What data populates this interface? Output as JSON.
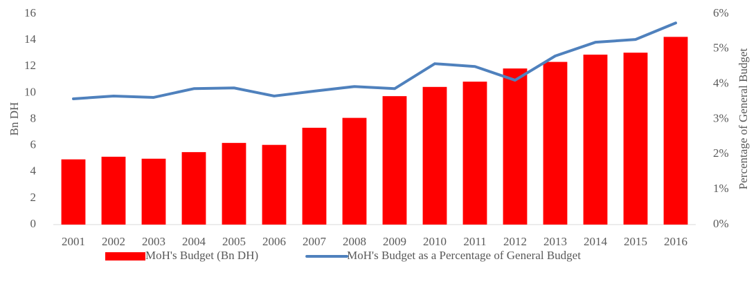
{
  "chart_data": {
    "type": "combo",
    "categories": [
      "2001",
      "2002",
      "2003",
      "2004",
      "2005",
      "2006",
      "2007",
      "2008",
      "2009",
      "2010",
      "2011",
      "2012",
      "2013",
      "2014",
      "2015",
      "2016"
    ],
    "series": [
      {
        "name": "MoH's Budget (Bn DH)",
        "type": "bar",
        "color": "#ff0000",
        "axis": "y",
        "values": [
          4.95,
          5.15,
          5.0,
          5.5,
          6.2,
          6.05,
          7.35,
          8.1,
          9.75,
          10.45,
          10.85,
          11.85,
          12.35,
          12.9,
          13.05,
          14.25
        ]
      },
      {
        "name": "MoH's Budget as a Percentage of General Budget",
        "type": "line",
        "color": "#4f81bd",
        "axis": "y2",
        "values": [
          3.58,
          3.66,
          3.62,
          3.87,
          3.89,
          3.66,
          3.8,
          3.93,
          3.87,
          4.58,
          4.5,
          4.11,
          4.8,
          5.19,
          5.27,
          5.74
        ]
      }
    ],
    "y_label": "Bn DH",
    "y2_label": "Percentage of General Budget",
    "ylim": [
      0,
      16
    ],
    "yticks": [
      0,
      2,
      4,
      6,
      8,
      10,
      12,
      14,
      16
    ],
    "y2lim": [
      0,
      6
    ],
    "y2ticks": [
      {
        "value": 0,
        "label": "0%"
      },
      {
        "value": 1,
        "label": "1%"
      },
      {
        "value": 2,
        "label": "2%"
      },
      {
        "value": 3,
        "label": "3%"
      },
      {
        "value": 4,
        "label": "4%"
      },
      {
        "value": 5,
        "label": "5%"
      },
      {
        "value": 6,
        "label": "6%"
      }
    ],
    "grid": false,
    "legend": "bottom"
  }
}
